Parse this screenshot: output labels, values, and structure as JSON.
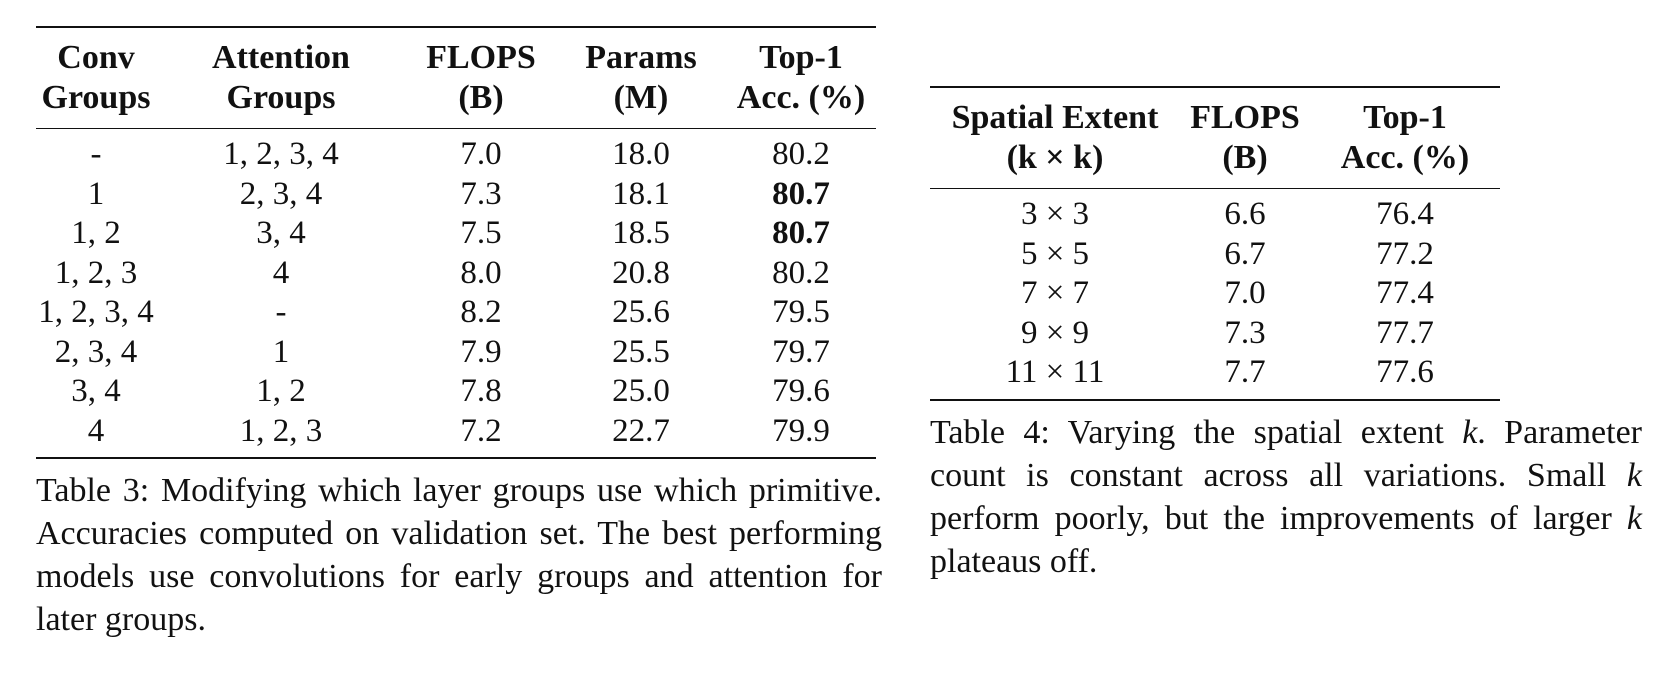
{
  "table3": {
    "headers": [
      [
        "Conv",
        "Groups"
      ],
      [
        "Attention",
        "Groups"
      ],
      [
        "FLOPS",
        "(B)"
      ],
      [
        "Params",
        "(M)"
      ],
      [
        "Top-1",
        "Acc. (%)"
      ]
    ],
    "rows": [
      [
        "-",
        "1, 2, 3, 4",
        "7.0",
        "18.0",
        "80.2"
      ],
      [
        "1",
        "2, 3, 4",
        "7.3",
        "18.1",
        "80.7"
      ],
      [
        "1, 2",
        "3, 4",
        "7.5",
        "18.5",
        "80.7"
      ],
      [
        "1, 2, 3",
        "4",
        "8.0",
        "20.8",
        "80.2"
      ],
      [
        "1, 2, 3, 4",
        "-",
        "8.2",
        "25.6",
        "79.5"
      ],
      [
        "2, 3, 4",
        "1",
        "7.9",
        "25.5",
        "79.7"
      ],
      [
        "3, 4",
        "1, 2",
        "7.8",
        "25.0",
        "79.6"
      ],
      [
        "4",
        "1, 2, 3",
        "7.2",
        "22.7",
        "79.9"
      ]
    ],
    "caption": "Table 3: Modifying which layer groups use which primitive.  Accuracies computed on validation set. The best performing models use convolutions for early groups and attention for later groups."
  },
  "table4": {
    "headers": [
      [
        "Spatial Extent",
        "(k × k)"
      ],
      [
        "FLOPS",
        "(B)"
      ],
      [
        "Top-1",
        "Acc. (%)"
      ]
    ],
    "rows": [
      [
        "3 × 3",
        "6.6",
        "76.4"
      ],
      [
        "5 × 5",
        "6.7",
        "77.2"
      ],
      [
        "7 × 7",
        "7.0",
        "77.4"
      ],
      [
        "9 × 9",
        "7.3",
        "77.7"
      ],
      [
        "11 × 11",
        "7.7",
        "77.6"
      ]
    ],
    "caption": {
      "p1": "Table 4: Varying the spatial extent ",
      "k1": "k",
      "p2": ". Parameter count is constant across all variations. Small ",
      "k2": "k",
      "p3": " perform poorly, but the improvements of larger ",
      "k3": "k",
      "p4": " plateaus off."
    }
  }
}
